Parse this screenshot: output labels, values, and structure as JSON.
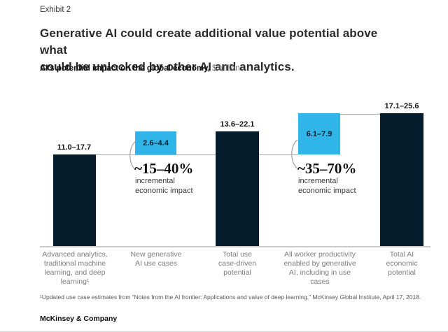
{
  "exhibit_label": "Exhibit 2",
  "title": "Generative AI could create additional value potential above what\ncould be unlocked by other AI and analytics.",
  "subtitle_bold": "AI’s potential impact on the global economy,",
  "subtitle_unit": " $ trillion",
  "footnote": "¹Updated use case estimates from “Notes from the AI frontier: Applications and value of deep learning,” McKinsey Global Institute, April 17, 2018.",
  "footer": "McKinsey & Company",
  "colors": {
    "dark_bar": "#051c2c",
    "cyan_bar": "#2fb5e8",
    "axis": "#cbcbcb",
    "connector": "#ababab"
  },
  "chart_data": {
    "type": "bar",
    "title": "AI’s potential impact on the global economy",
    "unit": "$ trillion",
    "ylim": [
      0,
      25.6
    ],
    "grid": false,
    "legend": false,
    "note": "Bars drawn to high end of each range; cyan boxes float stacked on the 17.7 level (top of first bar).",
    "columns": [
      {
        "label": "Advanced analytics,\ntraditional machine\nlearning, and deep\nlearning¹",
        "range": "11.0–17.7",
        "low": 11.0,
        "high": 17.7,
        "style": "dark",
        "stack_base": 0
      },
      {
        "label": "New generative\nAI use cases",
        "range": "2.6–4.4",
        "low": 2.6,
        "high": 4.4,
        "style": "cyan",
        "stack_base": 17.7
      },
      {
        "label": "Total use\ncase-driven\npotential",
        "range": "13.6–22.1",
        "low": 13.6,
        "high": 22.1,
        "style": "dark",
        "stack_base": 0
      },
      {
        "label": "All worker productivity\nenabled by generative\nAI, including in use\ncases",
        "range": "6.1–7.9",
        "low": 6.1,
        "high": 7.9,
        "style": "cyan",
        "stack_base": 17.7
      },
      {
        "label": "Total AI\neconomic\npotential",
        "range": "17.1–25.6",
        "low": 17.1,
        "high": 25.6,
        "style": "dark",
        "stack_base": 0
      }
    ],
    "annotations": [
      {
        "headline": "~15–40%",
        "detail": "incremental\neconomic impact"
      },
      {
        "headline": "~35–70%",
        "detail": "incremental\neconomic impact"
      }
    ]
  }
}
